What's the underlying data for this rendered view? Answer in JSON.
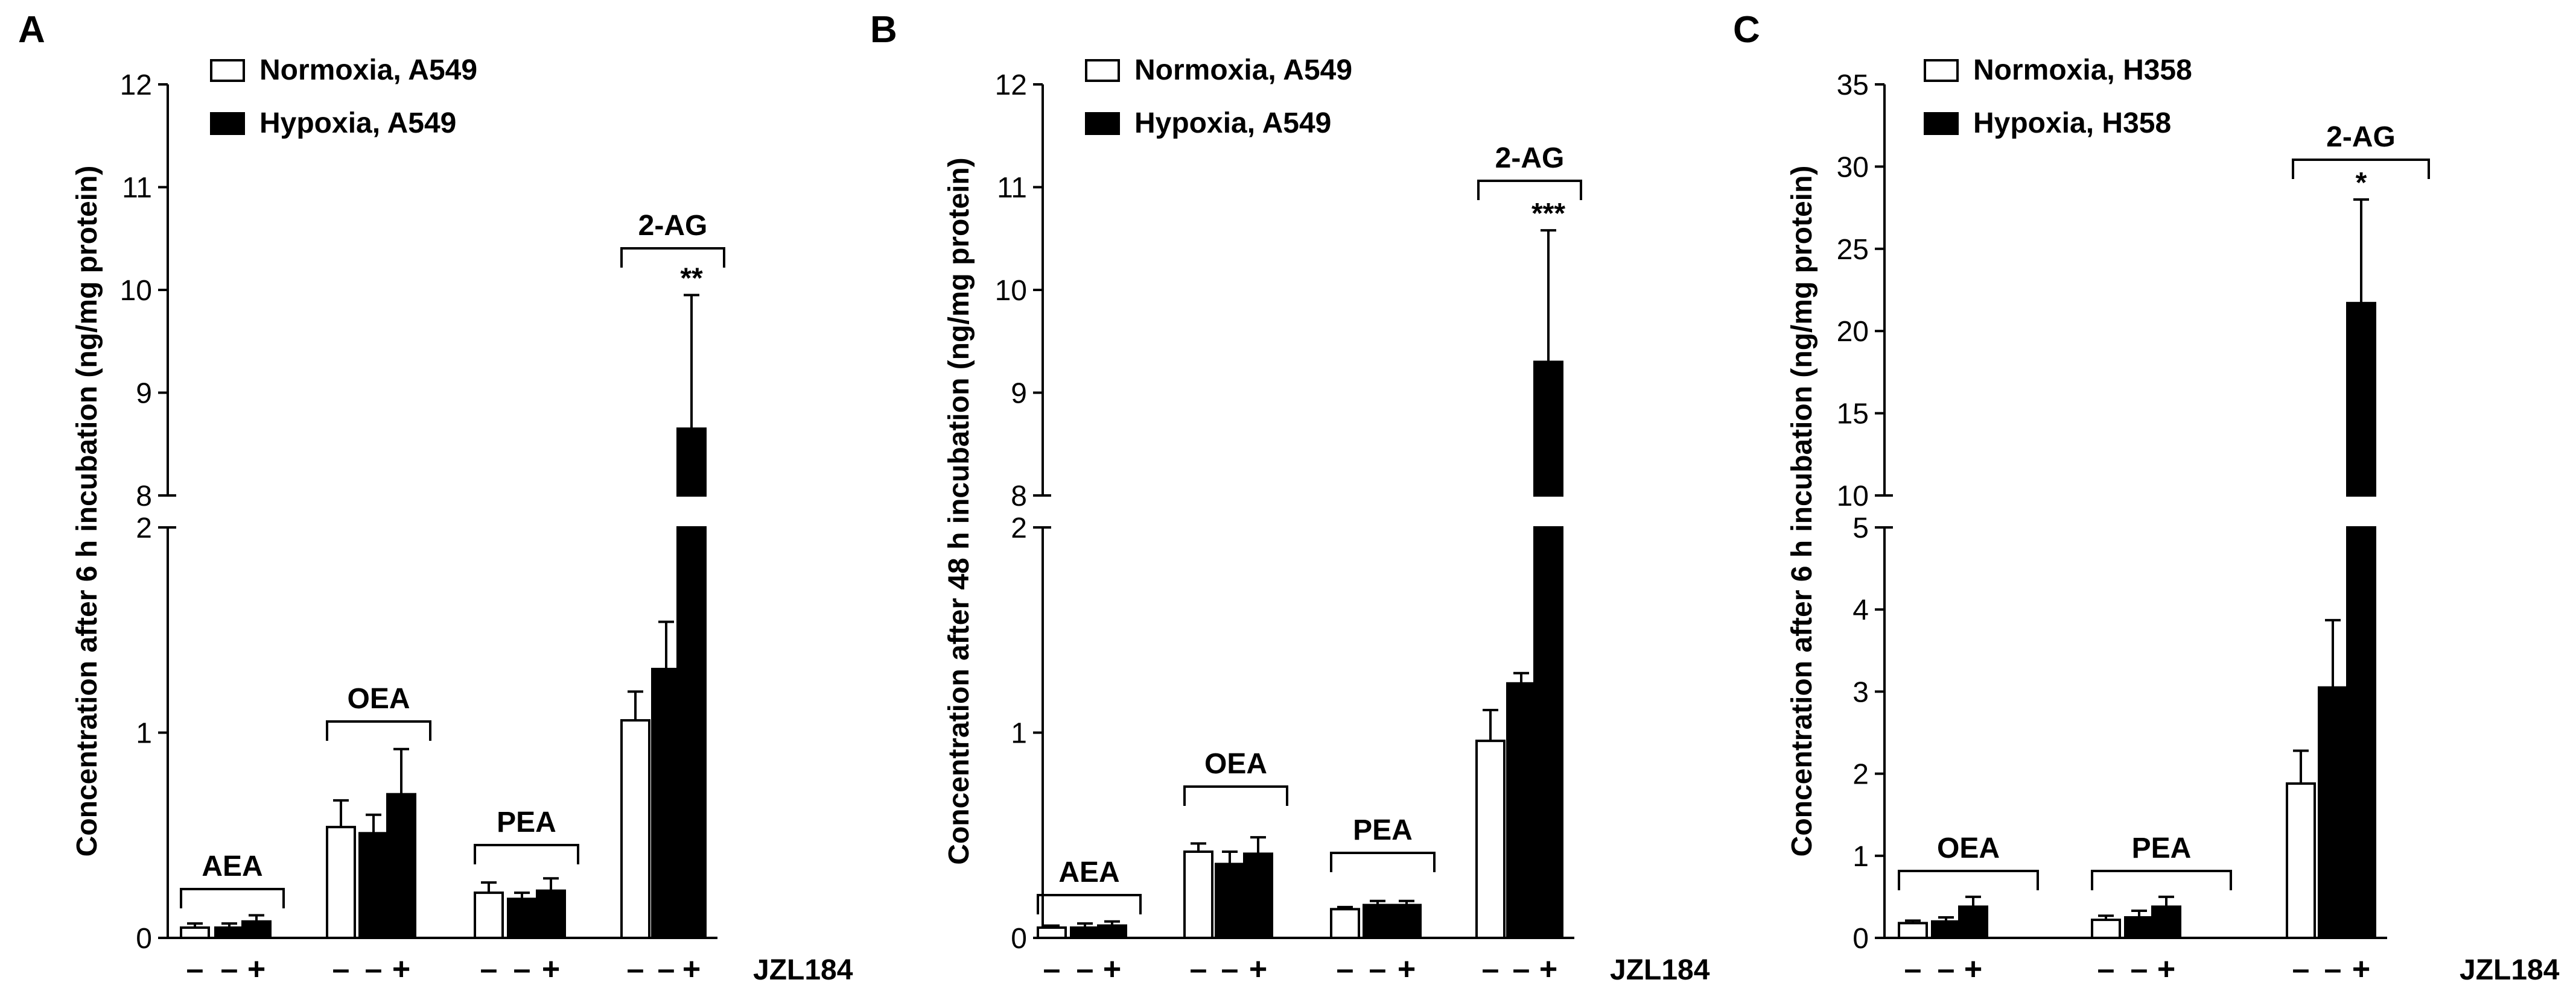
{
  "chart_data": [
    {
      "type": "bar",
      "panel": "A",
      "ylabel": "Concentration after 6 h incubation (ng/mg protein)",
      "xlabel": "JZL184",
      "legend": [
        {
          "name": "Normoxia, A549",
          "fill": "white"
        },
        {
          "name": "Hypoxia, A549",
          "fill": "black"
        }
      ],
      "broken_axis": true,
      "lower": {
        "ylim": [
          0,
          2
        ],
        "ticks": [
          "0",
          "1",
          "2"
        ]
      },
      "upper": {
        "ylim": [
          8,
          12
        ],
        "ticks": [
          "8",
          "9",
          "10",
          "11",
          "12"
        ]
      },
      "groups": [
        {
          "name": "AEA",
          "bars": [
            {
              "series": "Normoxia, A549",
              "value": 0.05,
              "err": 0.02,
              "jzl": "–"
            },
            {
              "series": "Hypoxia, A549",
              "value": 0.05,
              "err": 0.02,
              "jzl": "–"
            },
            {
              "series": "Hypoxia, A549",
              "value": 0.08,
              "err": 0.03,
              "jzl": "+"
            }
          ]
        },
        {
          "name": "OEA",
          "bars": [
            {
              "series": "Normoxia, A549",
              "value": 0.54,
              "err": 0.13,
              "jzl": "–"
            },
            {
              "series": "Hypoxia, A549",
              "value": 0.51,
              "err": 0.09,
              "jzl": "–"
            },
            {
              "series": "Hypoxia, A549",
              "value": 0.7,
              "err": 0.22,
              "jzl": "+"
            }
          ]
        },
        {
          "name": "PEA",
          "bars": [
            {
              "series": "Normoxia, A549",
              "value": 0.22,
              "err": 0.05,
              "jzl": "–"
            },
            {
              "series": "Hypoxia, A549",
              "value": 0.19,
              "err": 0.03,
              "jzl": "–"
            },
            {
              "series": "Hypoxia, A549",
              "value": 0.23,
              "err": 0.06,
              "jzl": "+"
            }
          ]
        },
        {
          "name": "2-AG",
          "bars": [
            {
              "series": "Normoxia, A549",
              "value": 1.06,
              "err": 0.14,
              "jzl": "–"
            },
            {
              "series": "Hypoxia, A549",
              "value": 1.31,
              "err": 0.23,
              "jzl": "–"
            },
            {
              "series": "Hypoxia, A549",
              "value": 8.65,
              "err": 1.3,
              "jzl": "+",
              "sig": "**"
            }
          ]
        }
      ]
    },
    {
      "type": "bar",
      "panel": "B",
      "ylabel": "Concentration after 48 h incubation (ng/mg protein)",
      "xlabel": "JZL184",
      "legend": [
        {
          "name": "Normoxia, A549",
          "fill": "white"
        },
        {
          "name": "Hypoxia, A549",
          "fill": "black"
        }
      ],
      "broken_axis": true,
      "lower": {
        "ylim": [
          0,
          2
        ],
        "ticks": [
          "0",
          "1",
          "2"
        ]
      },
      "upper": {
        "ylim": [
          8,
          12
        ],
        "ticks": [
          "8",
          "9",
          "10",
          "11",
          "12"
        ]
      },
      "groups": [
        {
          "name": "AEA",
          "bars": [
            {
              "series": "Normoxia, A549",
              "value": 0.05,
              "err": 0.01,
              "jzl": "–"
            },
            {
              "series": "Hypoxia, A549",
              "value": 0.05,
              "err": 0.02,
              "jzl": "–"
            },
            {
              "series": "Hypoxia, A549",
              "value": 0.06,
              "err": 0.02,
              "jzl": "+"
            }
          ]
        },
        {
          "name": "OEA",
          "bars": [
            {
              "series": "Normoxia, A549",
              "value": 0.42,
              "err": 0.04,
              "jzl": "–"
            },
            {
              "series": "Hypoxia, A549",
              "value": 0.36,
              "err": 0.06,
              "jzl": "–"
            },
            {
              "series": "Hypoxia, A549",
              "value": 0.41,
              "err": 0.08,
              "jzl": "+"
            }
          ]
        },
        {
          "name": "PEA",
          "bars": [
            {
              "series": "Normoxia, A549",
              "value": 0.14,
              "err": 0.01,
              "jzl": "–"
            },
            {
              "series": "Hypoxia, A549",
              "value": 0.16,
              "err": 0.02,
              "jzl": "–"
            },
            {
              "series": "Hypoxia, A549",
              "value": 0.16,
              "err": 0.02,
              "jzl": "+"
            }
          ]
        },
        {
          "name": "2-AG",
          "bars": [
            {
              "series": "Normoxia, A549",
              "value": 0.96,
              "err": 0.15,
              "jzl": "–"
            },
            {
              "series": "Hypoxia, A549",
              "value": 1.24,
              "err": 0.05,
              "jzl": "–"
            },
            {
              "series": "Hypoxia, A549",
              "value": 9.3,
              "err": 1.28,
              "jzl": "+",
              "sig": "***"
            }
          ]
        }
      ]
    },
    {
      "type": "bar",
      "panel": "C",
      "ylabel": "Concentration after 6 h incubation (ng/mg protein)",
      "xlabel": "JZL184",
      "legend": [
        {
          "name": "Normoxia, H358",
          "fill": "white"
        },
        {
          "name": "Hypoxia, H358",
          "fill": "black"
        }
      ],
      "broken_axis": true,
      "lower": {
        "ylim": [
          0,
          5
        ],
        "ticks": [
          "0",
          "1",
          "2",
          "3",
          "4",
          "5"
        ]
      },
      "upper": {
        "ylim": [
          10,
          35
        ],
        "ticks": [
          "10",
          "15",
          "20",
          "25",
          "30",
          "35"
        ]
      },
      "groups": [
        {
          "name": "OEA",
          "bars": [
            {
              "series": "Normoxia, H358",
              "value": 0.18,
              "err": 0.03,
              "jzl": "–"
            },
            {
              "series": "Hypoxia, H358",
              "value": 0.2,
              "err": 0.05,
              "jzl": "–"
            },
            {
              "series": "Hypoxia, H358",
              "value": 0.38,
              "err": 0.12,
              "jzl": "+"
            }
          ]
        },
        {
          "name": "PEA",
          "bars": [
            {
              "series": "Normoxia, H358",
              "value": 0.22,
              "err": 0.05,
              "jzl": "–"
            },
            {
              "series": "Hypoxia, H358",
              "value": 0.25,
              "err": 0.08,
              "jzl": "–"
            },
            {
              "series": "Hypoxia, H358",
              "value": 0.38,
              "err": 0.12,
              "jzl": "+"
            }
          ]
        },
        {
          "name": "2-AG",
          "bars": [
            {
              "series": "Normoxia, H358",
              "value": 1.88,
              "err": 0.4,
              "jzl": "–"
            },
            {
              "series": "Hypoxia, H358",
              "value": 3.05,
              "err": 0.82,
              "jzl": "–"
            },
            {
              "series": "Hypoxia, H358",
              "value": 21.7,
              "err": 6.3,
              "jzl": "+",
              "sig": "*"
            }
          ]
        }
      ]
    }
  ]
}
